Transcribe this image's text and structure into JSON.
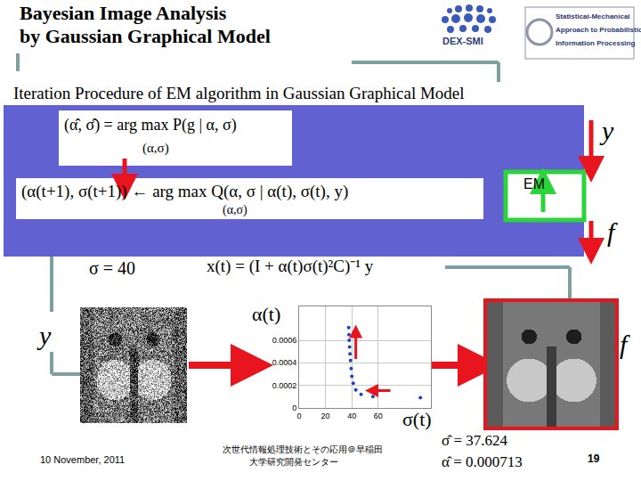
{
  "header": {
    "title_lines": [
      "Bayesian Image Analysis",
      "by Gaussian Graphical Model"
    ],
    "logo_left": "DEX-SMI",
    "logo_right": [
      "Statistical-Mechanical",
      "Approach to Probabilistic",
      "Information Processing"
    ]
  },
  "subtitle": "Iteration Procedure of EM algorithm in Gaussian Graphical Model",
  "formulas": {
    "map_estimate": "(α̂, σ̂) = arg max P(g | α, σ)",
    "map_under": "(α,σ)",
    "em_step": "(α(t+1), σ(t+1)) ← arg max Q(α, σ | α(t), σ(t), y)",
    "em_under": "(α,σ)",
    "restoration": "x(t) = (I + α(t)σ(t)²C)⁻¹ y"
  },
  "em_label": "EM",
  "labels": {
    "y_top": "y",
    "f_right": "f",
    "y_left": "y",
    "f_bottom": "f",
    "sigma_start": "σ = 40"
  },
  "chart_data": {
    "type": "scatter",
    "x_label": "σ(t)",
    "y_label": "α(t)",
    "x": [
      92,
      56,
      47,
      43,
      41,
      40,
      39.5,
      39,
      38.6,
      38.3,
      38,
      37.8,
      37.624
    ],
    "values": [
      9e-05,
      0.0001,
      0.00012,
      0.00016,
      0.00022,
      0.00028,
      0.00035,
      0.00042,
      0.00048,
      0.00054,
      0.0006,
      0.00065,
      0.000713
    ],
    "color": "#2040c0",
    "marker": "circle",
    "xlim": [
      0,
      100
    ],
    "xticks": [
      0,
      20,
      40,
      60
    ],
    "ylim": [
      0,
      0.0009
    ],
    "yticks": [
      0,
      0.0002,
      0.0004,
      0.0006
    ],
    "grid": true
  },
  "results": [
    "σ̂ = 37.624",
    "α̂ = 0.000713"
  ],
  "footer": {
    "date": "10 November, 2011",
    "venue": [
      "次世代情報処理技術とその応用＠早稲田",
      "大学研究開発センター"
    ],
    "page": "19"
  }
}
